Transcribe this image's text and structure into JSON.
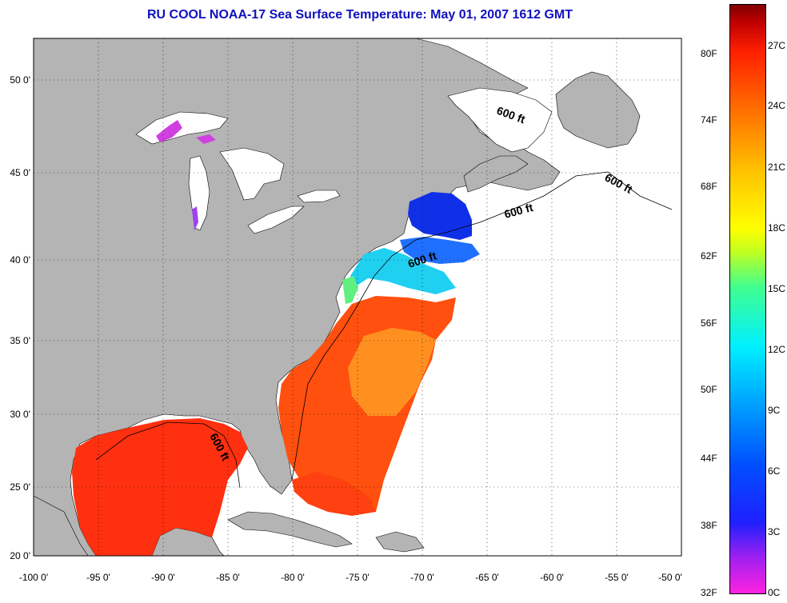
{
  "title": "RU COOL  NOAA-17  Sea Surface Temperature:  May 01, 2007 1612 GMT",
  "map": {
    "lon_range": [
      -100,
      -50
    ],
    "lat_range": [
      20,
      52
    ],
    "lon_ticks": [
      "-100 0'",
      "-95 0'",
      "-90 0'",
      "-85 0'",
      "-80 0'",
      "-75 0'",
      "-70 0'",
      "-65 0'",
      "-60 0'",
      "-55 0'",
      "-50 0'"
    ],
    "lat_ticks": [
      "20 0'",
      "25 0'",
      "30 0'",
      "35 0'",
      "40 0'",
      "45 0'",
      "50 0'"
    ],
    "isobath_labels": [
      "600 ft",
      "600 ft",
      "600 ft",
      "600 ft",
      "600 ft"
    ],
    "colors": {
      "land": "#b4b4b4",
      "ocean": "#ffffff",
      "grid": "#000000"
    }
  },
  "colorbar": {
    "fahrenheit_labels": [
      "80F",
      "74F",
      "68F",
      "62F",
      "56F",
      "50F",
      "44F",
      "38F",
      "32F"
    ],
    "celsius_labels": [
      "27C",
      "24C",
      "21C",
      "18C",
      "15C",
      "12C",
      "9C",
      "6C",
      "3C",
      "0C"
    ]
  }
}
